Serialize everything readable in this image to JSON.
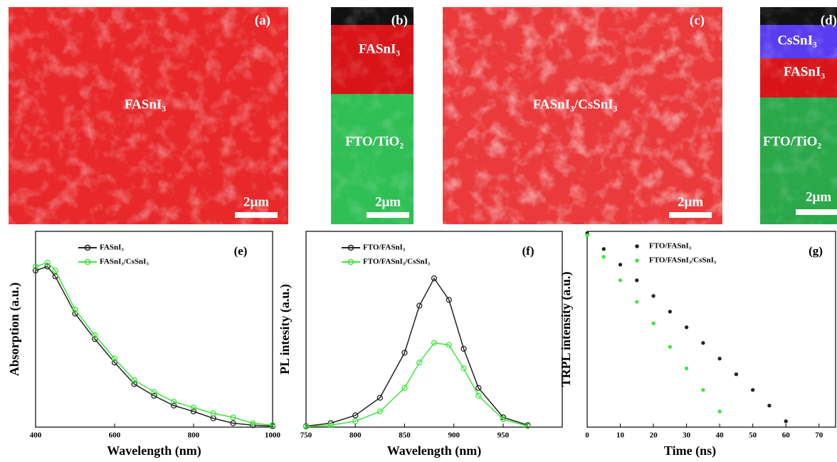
{
  "images": [
    {
      "label": "(a)",
      "caption": "FASnI₃",
      "scale": "2μm"
    },
    {
      "label": "(b)",
      "layers": [
        "FASnI₃",
        "FTO/TiO₂"
      ],
      "scale": "2μm"
    },
    {
      "label": "(c)",
      "caption": "FASnI₃/CsSnI₃",
      "scale": "2μm"
    },
    {
      "label": "(d)",
      "layers": [
        "CsSnI₃",
        "FASnI₃",
        "FTO/TiO₂"
      ],
      "scale": "2μm"
    }
  ],
  "chart_data": [
    {
      "type": "line",
      "panel": "(e)",
      "x_label": "Wavelength (nm)",
      "y_label": "Absorption (a.u.)",
      "x": [
        400,
        430,
        450,
        500,
        550,
        600,
        650,
        700,
        750,
        800,
        850,
        900,
        950,
        1000
      ],
      "xlim": [
        400,
        1000
      ],
      "xticks": [
        400,
        600,
        800,
        1000
      ],
      "ylim": [
        0,
        1
      ],
      "series": [
        {
          "name": "FASnI₃",
          "color": "#222222",
          "values": [
            0.8,
            0.82,
            0.77,
            0.58,
            0.45,
            0.33,
            0.22,
            0.16,
            0.11,
            0.08,
            0.045,
            0.02,
            0.01,
            0.005
          ]
        },
        {
          "name": "FASnI₃/CsSnI₃",
          "color": "#3de63d",
          "values": [
            0.82,
            0.84,
            0.8,
            0.6,
            0.47,
            0.35,
            0.24,
            0.18,
            0.13,
            0.1,
            0.07,
            0.05,
            0.02,
            0.01
          ]
        }
      ]
    },
    {
      "type": "line",
      "panel": "(f)",
      "x_label": "Wavelength (nm)",
      "y_label": "PL intesity (a.u.)",
      "x": [
        750,
        775,
        800,
        825,
        850,
        865,
        880,
        895,
        910,
        925,
        950,
        975
      ],
      "xlim": [
        750,
        1010
      ],
      "xticks": [
        750,
        800,
        850,
        900,
        950
      ],
      "ylim": [
        0,
        1
      ],
      "series": [
        {
          "name": "FTO/FASnI₃",
          "color": "#222222",
          "values": [
            0.005,
            0.02,
            0.06,
            0.15,
            0.38,
            0.62,
            0.76,
            0.65,
            0.4,
            0.2,
            0.05,
            0.01
          ]
        },
        {
          "name": "FTO/FASnI₃/CsSnI₃",
          "color": "#3de63d",
          "values": [
            0.002,
            0.01,
            0.03,
            0.08,
            0.2,
            0.33,
            0.43,
            0.42,
            0.3,
            0.16,
            0.04,
            0.005
          ]
        }
      ]
    },
    {
      "type": "scatter",
      "panel": "(g)",
      "x_label": "Time (ns)",
      "y_label": "TRPL intensity (a.u.)",
      "x": [
        0,
        5,
        10,
        15,
        20,
        25,
        30,
        35,
        40,
        45,
        50,
        55,
        60
      ],
      "xlim": [
        0,
        75
      ],
      "xticks": [
        0,
        10,
        20,
        30,
        40,
        50,
        60,
        70
      ],
      "ylim": [
        0,
        1
      ],
      "series": [
        {
          "name": "FTO/FASnI₃",
          "color": "#222222",
          "values": [
            0.99,
            0.91,
            0.83,
            0.75,
            0.67,
            0.59,
            0.51,
            0.43,
            0.35,
            0.27,
            0.19,
            0.11,
            0.03
          ]
        },
        {
          "name": "FTO/FASnI₃/CsSnI₃",
          "color": "#3de63d",
          "values": [
            0.98,
            0.87,
            0.75,
            0.64,
            0.53,
            0.41,
            0.3,
            0.19,
            0.08,
            null,
            null,
            null,
            null
          ]
        }
      ]
    }
  ]
}
